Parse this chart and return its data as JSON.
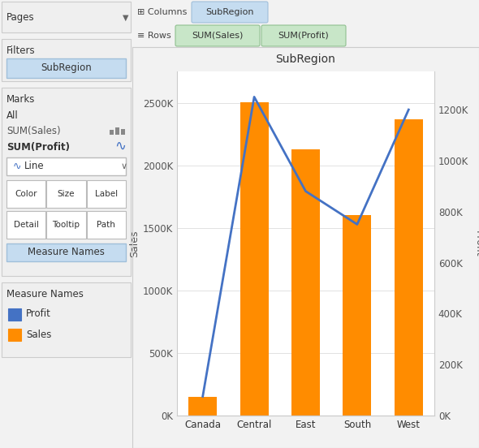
{
  "categories": [
    "Canada",
    "Central",
    "East",
    "South",
    "West"
  ],
  "sales": [
    150000,
    2504000,
    2130000,
    1600000,
    2370000
  ],
  "profit": [
    75000,
    1250000,
    880000,
    750000,
    1200000
  ],
  "bar_color": "#FF8C00",
  "line_color": "#4472C4",
  "title": "SubRegion",
  "ylabel_left": "Sales",
  "ylabel_right": "Profit",
  "ylim_left": [
    0,
    2750000
  ],
  "ylim_right": [
    0,
    1350000
  ],
  "yticks_left": [
    0,
    500000,
    1000000,
    1500000,
    2000000,
    2500000
  ],
  "yticks_right": [
    0,
    200000,
    400000,
    600000,
    800000,
    1000000,
    1200000
  ],
  "legend_profit_color": "#4472C4",
  "legend_sales_color": "#FF8C00",
  "sidebar_bg": "#F2F2F2",
  "chart_bg": "#FFFFFF",
  "toolbar_bg": "#F2F2F2",
  "filter_pill_color": "#C5DCF0",
  "filter_pill_edge": "#A0BFDA",
  "col_pill_color": "#C5DCF0",
  "col_pill_edge": "#A0BFDA",
  "row_pill_color": "#C8E6C8",
  "row_pill_edge": "#90C090",
  "measure_pill_color": "#C5DCF0",
  "measure_pill_edge": "#A0BFDA"
}
